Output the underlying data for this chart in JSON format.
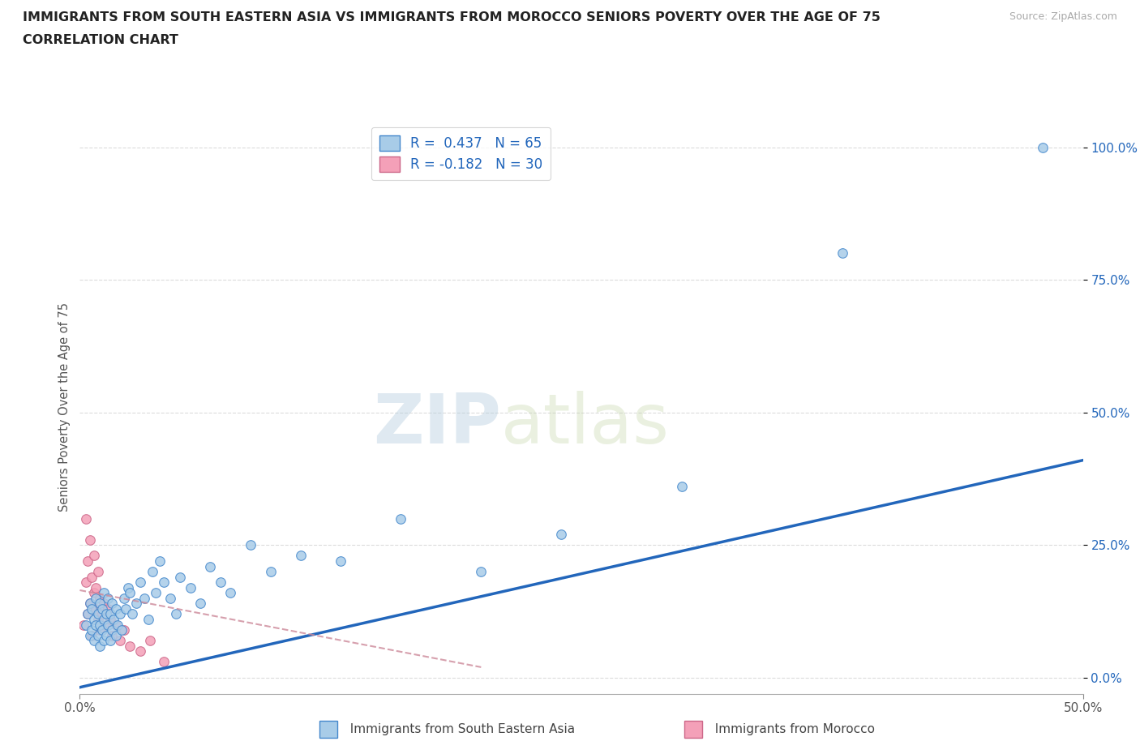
{
  "title_line1": "IMMIGRANTS FROM SOUTH EASTERN ASIA VS IMMIGRANTS FROM MOROCCO SENIORS POVERTY OVER THE AGE OF 75",
  "title_line2": "CORRELATION CHART",
  "source_text": "Source: ZipAtlas.com",
  "ylabel": "Seniors Poverty Over the Age of 75",
  "legend_label1": "Immigrants from South Eastern Asia",
  "legend_label2": "Immigrants from Morocco",
  "R1": 0.437,
  "N1": 65,
  "R2": -0.182,
  "N2": 30,
  "xlim": [
    0.0,
    0.5
  ],
  "ylim": [
    -0.03,
    1.05
  ],
  "ytick_labels": [
    "0.0%",
    "25.0%",
    "50.0%",
    "75.0%",
    "100.0%"
  ],
  "ytick_vals": [
    0.0,
    0.25,
    0.5,
    0.75,
    1.0
  ],
  "color_blue": "#a8cce8",
  "color_blue_line": "#2266bb",
  "color_blue_edge": "#4488cc",
  "color_pink": "#f4a0b8",
  "color_pink_edge": "#cc6688",
  "color_pink_line": "#cc8899",
  "background_color": "#ffffff",
  "watermark_zip": "ZIP",
  "watermark_atlas": "atlas",
  "blue_scatter_x": [
    0.003,
    0.004,
    0.005,
    0.005,
    0.006,
    0.006,
    0.007,
    0.007,
    0.008,
    0.008,
    0.009,
    0.009,
    0.01,
    0.01,
    0.01,
    0.011,
    0.011,
    0.012,
    0.012,
    0.012,
    0.013,
    0.013,
    0.014,
    0.014,
    0.015,
    0.015,
    0.016,
    0.016,
    0.017,
    0.018,
    0.018,
    0.019,
    0.02,
    0.021,
    0.022,
    0.023,
    0.024,
    0.025,
    0.026,
    0.028,
    0.03,
    0.032,
    0.034,
    0.036,
    0.038,
    0.04,
    0.042,
    0.045,
    0.048,
    0.05,
    0.055,
    0.06,
    0.065,
    0.07,
    0.075,
    0.085,
    0.095,
    0.11,
    0.13,
    0.16,
    0.2,
    0.24,
    0.3,
    0.38,
    0.48
  ],
  "blue_scatter_y": [
    0.1,
    0.12,
    0.08,
    0.14,
    0.09,
    0.13,
    0.07,
    0.11,
    0.1,
    0.15,
    0.08,
    0.12,
    0.06,
    0.1,
    0.14,
    0.09,
    0.13,
    0.07,
    0.11,
    0.16,
    0.08,
    0.12,
    0.1,
    0.15,
    0.07,
    0.12,
    0.09,
    0.14,
    0.11,
    0.08,
    0.13,
    0.1,
    0.12,
    0.09,
    0.15,
    0.13,
    0.17,
    0.16,
    0.12,
    0.14,
    0.18,
    0.15,
    0.11,
    0.2,
    0.16,
    0.22,
    0.18,
    0.15,
    0.12,
    0.19,
    0.17,
    0.14,
    0.21,
    0.18,
    0.16,
    0.25,
    0.2,
    0.23,
    0.22,
    0.3,
    0.2,
    0.27,
    0.36,
    0.8,
    1.0
  ],
  "pink_scatter_x": [
    0.002,
    0.003,
    0.003,
    0.004,
    0.004,
    0.005,
    0.005,
    0.006,
    0.006,
    0.007,
    0.007,
    0.008,
    0.008,
    0.009,
    0.009,
    0.01,
    0.01,
    0.011,
    0.012,
    0.013,
    0.014,
    0.015,
    0.016,
    0.018,
    0.02,
    0.022,
    0.025,
    0.03,
    0.035,
    0.042
  ],
  "pink_scatter_y": [
    0.1,
    0.3,
    0.18,
    0.22,
    0.12,
    0.26,
    0.14,
    0.19,
    0.08,
    0.16,
    0.23,
    0.13,
    0.17,
    0.11,
    0.2,
    0.09,
    0.15,
    0.12,
    0.14,
    0.1,
    0.13,
    0.11,
    0.08,
    0.1,
    0.07,
    0.09,
    0.06,
    0.05,
    0.07,
    0.03
  ],
  "blue_line_x0": 0.0,
  "blue_line_y0": -0.018,
  "blue_line_x1": 0.5,
  "blue_line_y1": 0.41,
  "pink_line_x0": 0.0,
  "pink_line_y0": 0.165,
  "pink_line_x1": 0.2,
  "pink_line_y1": 0.02
}
